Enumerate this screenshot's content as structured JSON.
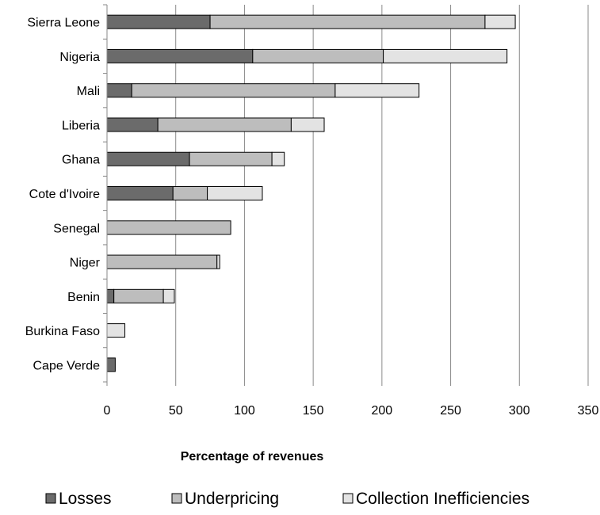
{
  "chart_data": {
    "type": "bar",
    "orientation": "horizontal",
    "stacked": true,
    "title": "",
    "xlabel": "Percentage of revenues",
    "ylabel": "",
    "xlim": [
      0,
      350
    ],
    "xticks": [
      0,
      50,
      100,
      150,
      200,
      250,
      300,
      350
    ],
    "grid": true,
    "legend_position": "bottom",
    "categories": [
      "Sierra Leone",
      "Nigeria",
      "Mali",
      "Liberia",
      "Ghana",
      "Cote d'Ivoire",
      "Senegal",
      "Niger",
      "Benin",
      "Burkina Faso",
      "Cape Verde"
    ],
    "series": [
      {
        "name": "Losses",
        "color": "#6b6b6b",
        "values": [
          75,
          106,
          18,
          37,
          60,
          48,
          0,
          0,
          5,
          0,
          6
        ]
      },
      {
        "name": "Underpricing",
        "color": "#bdbdbd",
        "values": [
          200,
          95,
          148,
          97,
          60,
          25,
          90,
          80,
          36,
          0,
          0
        ]
      },
      {
        "name": "Collection Inefficiencies",
        "color": "#e3e3e3",
        "values": [
          22,
          90,
          61,
          24,
          9,
          40,
          0,
          2,
          8,
          13,
          0
        ]
      }
    ]
  }
}
